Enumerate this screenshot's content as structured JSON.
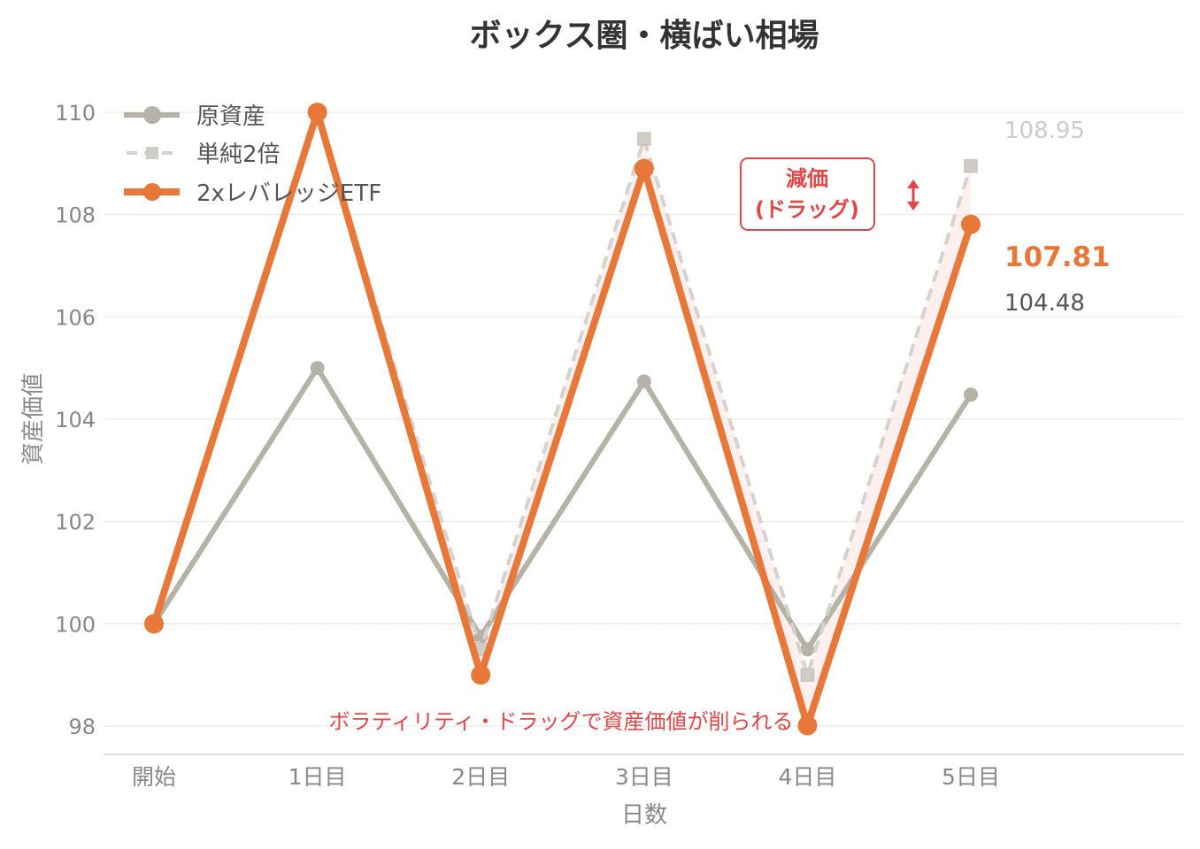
{
  "chart_data": {
    "type": "line",
    "title": "ボックス圏・横ばい相場",
    "xlabel": "日数",
    "ylabel": "資産価値",
    "categories": [
      "開始",
      "1日目",
      "2日目",
      "3日目",
      "4日目",
      "5日目"
    ],
    "ylim": [
      97.4,
      111.2
    ],
    "yticks": [
      98,
      100,
      102,
      104,
      106,
      108,
      110
    ],
    "grid": true,
    "legend_position": "top-left",
    "series": [
      {
        "name": "原資産",
        "values": [
          100,
          105,
          99.75,
          104.74,
          99.5,
          104.48
        ],
        "color": "#b5b2a8",
        "style": "solid",
        "marker": "circle"
      },
      {
        "name": "単純2倍",
        "values": [
          100,
          110,
          99.5,
          109.48,
          99.0,
          108.95
        ],
        "color": "#d6d2cc",
        "style": "dashed",
        "marker": "square"
      },
      {
        "name": "2xレバレッジETF",
        "values": [
          100,
          110,
          99,
          108.9,
          98.01,
          107.81
        ],
        "color": "#e8783a",
        "style": "solid",
        "marker": "circle"
      }
    ],
    "end_labels": {
      "simple": "108.95",
      "leveraged": "107.81",
      "underlying": "104.48"
    },
    "annotations": {
      "box": [
        "減価",
        "(ドラッグ)"
      ],
      "bottom": "ボラティリティ・ドラッグで資産価値が削られる"
    },
    "accent_color": "#e04848"
  }
}
